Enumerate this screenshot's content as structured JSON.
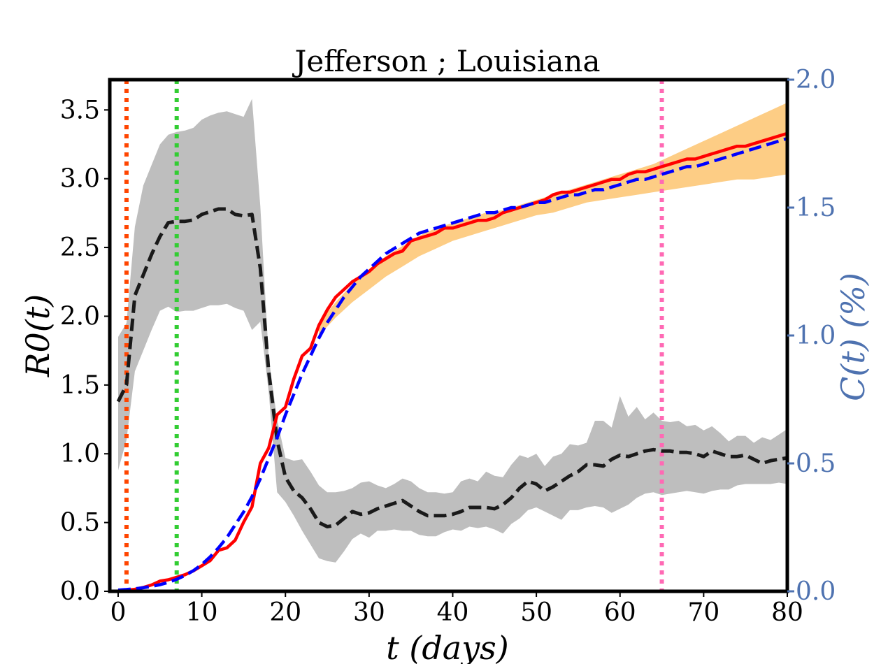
{
  "colors": {
    "r0_line": "#1a1a1a",
    "r0_band": "#bebebe",
    "c_band": "#fdcd85",
    "c_observed": "#ff0000",
    "c_model": "#0000ff",
    "right_axis": "#4e72b0",
    "vline_1": "#ff4500",
    "vline_2": "#32cd32",
    "vline_3": "#ff69b4"
  },
  "chart_data": {
    "type": "line",
    "title": "Jefferson ; Louisiana",
    "xlabel": "t (days)",
    "ylabel_left": "R0(t)",
    "ylabel_right": "C(t) (%)",
    "xlim": [
      -1,
      80
    ],
    "ylim_left": [
      0,
      3.72
    ],
    "ylim_right": [
      0,
      2.0
    ],
    "xticks": [
      "0",
      "10",
      "20",
      "30",
      "40",
      "50",
      "60",
      "70",
      "80"
    ],
    "yticks_left": [
      "0.0",
      "0.5",
      "1.0",
      "1.5",
      "2.0",
      "2.5",
      "3.0",
      "3.5"
    ],
    "yticks_right": [
      "0.0",
      "0.5",
      "1.0",
      "1.5",
      "2.0"
    ],
    "vlines": [
      {
        "x": 1,
        "color": "#ff4500",
        "style": "dotted"
      },
      {
        "x": 7,
        "color": "#32cd32",
        "style": "dotted"
      },
      {
        "x": 65,
        "color": "#ff69b4",
        "style": "dotted"
      }
    ],
    "series": [
      {
        "axis": "left",
        "style": "dashed",
        "x": [
          0,
          1,
          2,
          3,
          4,
          5,
          6,
          7,
          8,
          9,
          10,
          11,
          12,
          13,
          14,
          15,
          16,
          17,
          18,
          19,
          20,
          21,
          22,
          23,
          24,
          25,
          26,
          27,
          28,
          29,
          30,
          31,
          32,
          33,
          34,
          35,
          36,
          37,
          38,
          39,
          40,
          41,
          42,
          43,
          44,
          45,
          46,
          47,
          48,
          49,
          50,
          51,
          52,
          53,
          54,
          55,
          56,
          57,
          58,
          59,
          60,
          61,
          62,
          63,
          64,
          65,
          66,
          67,
          68,
          69,
          70,
          71,
          72,
          73,
          74,
          75,
          76,
          77,
          78,
          79,
          80
        ],
        "y": [
          1.38,
          1.5,
          2.15,
          2.3,
          2.45,
          2.58,
          2.68,
          2.69,
          2.69,
          2.7,
          2.74,
          2.76,
          2.78,
          2.78,
          2.74,
          2.73,
          2.74,
          2.35,
          1.6,
          1.1,
          0.83,
          0.73,
          0.68,
          0.6,
          0.5,
          0.47,
          0.48,
          0.53,
          0.58,
          0.56,
          0.57,
          0.6,
          0.62,
          0.64,
          0.66,
          0.62,
          0.58,
          0.55,
          0.55,
          0.55,
          0.56,
          0.58,
          0.61,
          0.61,
          0.61,
          0.6,
          0.63,
          0.68,
          0.75,
          0.8,
          0.78,
          0.73,
          0.76,
          0.8,
          0.84,
          0.87,
          0.92,
          0.92,
          0.91,
          0.96,
          0.99,
          0.98,
          1.0,
          1.02,
          1.03,
          1.02,
          1.02,
          1.01,
          1.01,
          1.0,
          0.98,
          1.02,
          1.0,
          0.98,
          0.98,
          0.99,
          0.96,
          0.93,
          0.95,
          0.96,
          0.97
        ]
      },
      {
        "axis": "left",
        "style": "band",
        "x": [
          0,
          1,
          2,
          3,
          4,
          5,
          6,
          7,
          8,
          9,
          10,
          11,
          12,
          13,
          14,
          15,
          16,
          17,
          18,
          19,
          20,
          21,
          22,
          23,
          24,
          25,
          26,
          27,
          28,
          29,
          30,
          31,
          32,
          33,
          34,
          35,
          36,
          37,
          38,
          39,
          40,
          41,
          42,
          43,
          44,
          45,
          46,
          47,
          48,
          49,
          50,
          51,
          52,
          53,
          54,
          55,
          56,
          57,
          58,
          59,
          60,
          61,
          62,
          63,
          64,
          65,
          66,
          67,
          68,
          69,
          70,
          71,
          72,
          73,
          74,
          75,
          76,
          77,
          78,
          79,
          80
        ],
        "y_low": [
          0.88,
          1.1,
          1.6,
          1.75,
          1.9,
          2.04,
          2.07,
          2.03,
          2.04,
          2.04,
          2.06,
          2.08,
          2.08,
          2.09,
          2.06,
          2.04,
          1.9,
          1.96,
          1.45,
          0.72,
          0.65,
          0.55,
          0.44,
          0.34,
          0.24,
          0.22,
          0.21,
          0.29,
          0.38,
          0.42,
          0.39,
          0.44,
          0.44,
          0.45,
          0.44,
          0.44,
          0.41,
          0.4,
          0.4,
          0.43,
          0.45,
          0.44,
          0.47,
          0.46,
          0.47,
          0.45,
          0.42,
          0.49,
          0.53,
          0.59,
          0.61,
          0.58,
          0.55,
          0.52,
          0.59,
          0.59,
          0.61,
          0.62,
          0.61,
          0.57,
          0.6,
          0.63,
          0.68,
          0.71,
          0.72,
          0.7,
          0.71,
          0.72,
          0.73,
          0.72,
          0.71,
          0.73,
          0.74,
          0.74,
          0.77,
          0.78,
          0.78,
          0.78,
          0.78,
          0.79,
          0.78
        ],
        "y_high": [
          1.85,
          1.95,
          2.65,
          2.95,
          3.1,
          3.25,
          3.32,
          3.34,
          3.35,
          3.37,
          3.43,
          3.46,
          3.48,
          3.49,
          3.47,
          3.45,
          3.58,
          2.8,
          1.7,
          1.25,
          0.97,
          0.95,
          0.96,
          0.87,
          0.77,
          0.72,
          0.72,
          0.73,
          0.75,
          0.79,
          0.8,
          0.77,
          0.75,
          0.78,
          0.82,
          0.8,
          0.75,
          0.72,
          0.72,
          0.71,
          0.72,
          0.8,
          0.82,
          0.8,
          0.87,
          0.84,
          0.83,
          0.92,
          0.99,
          0.97,
          1.0,
          0.91,
          0.98,
          1.0,
          1.07,
          1.06,
          1.08,
          1.24,
          1.24,
          1.19,
          1.42,
          1.27,
          1.34,
          1.25,
          1.3,
          1.24,
          1.23,
          1.24,
          1.2,
          1.21,
          1.17,
          1.2,
          1.15,
          1.09,
          1.13,
          1.13,
          1.08,
          1.12,
          1.1,
          1.14,
          1.18
        ]
      },
      {
        "axis": "right",
        "style": "solid",
        "x": [
          0,
          1,
          2,
          3,
          4,
          5,
          6,
          7,
          8,
          9,
          10,
          11,
          12,
          13,
          14,
          15,
          16,
          17,
          18,
          19,
          20,
          21,
          22,
          23,
          24,
          25,
          26,
          27,
          28,
          29,
          30,
          31,
          32,
          33,
          34,
          35,
          36,
          37,
          38,
          39,
          40,
          41,
          42,
          43,
          44,
          45,
          46,
          47,
          48,
          49,
          50,
          51,
          52,
          53,
          54,
          55,
          56,
          57,
          58,
          59,
          60,
          61,
          62,
          63,
          64,
          65,
          66,
          67,
          68,
          69,
          70,
          71,
          72,
          73,
          74,
          75,
          76,
          77,
          78,
          79,
          80
        ],
        "y": [
          0.002,
          0.004,
          0.008,
          0.015,
          0.025,
          0.04,
          0.045,
          0.055,
          0.065,
          0.08,
          0.1,
          0.12,
          0.16,
          0.17,
          0.2,
          0.27,
          0.33,
          0.5,
          0.56,
          0.69,
          0.72,
          0.83,
          0.92,
          0.95,
          1.04,
          1.1,
          1.15,
          1.18,
          1.21,
          1.23,
          1.25,
          1.28,
          1.3,
          1.32,
          1.33,
          1.37,
          1.38,
          1.39,
          1.4,
          1.42,
          1.42,
          1.43,
          1.44,
          1.45,
          1.45,
          1.46,
          1.48,
          1.49,
          1.5,
          1.51,
          1.52,
          1.53,
          1.55,
          1.56,
          1.56,
          1.57,
          1.58,
          1.59,
          1.6,
          1.61,
          1.61,
          1.63,
          1.64,
          1.64,
          1.65,
          1.66,
          1.67,
          1.68,
          1.69,
          1.69,
          1.7,
          1.71,
          1.72,
          1.73,
          1.74,
          1.74,
          1.75,
          1.76,
          1.77,
          1.78,
          1.79
        ]
      },
      {
        "axis": "right",
        "style": "dashed",
        "x": [
          0,
          1,
          2,
          3,
          4,
          5,
          6,
          7,
          8,
          9,
          10,
          11,
          12,
          13,
          14,
          15,
          16,
          17,
          18,
          19,
          20,
          21,
          22,
          23,
          24,
          25,
          26,
          27,
          28,
          29,
          30,
          31,
          32,
          33,
          34,
          35,
          36,
          37,
          38,
          39,
          40,
          41,
          42,
          43,
          44,
          45,
          46,
          47,
          48,
          49,
          50,
          51,
          52,
          53,
          54,
          55,
          56,
          57,
          58,
          59,
          60,
          61,
          62,
          63,
          64,
          65,
          66,
          67,
          68,
          69,
          70,
          71,
          72,
          73,
          74,
          75,
          76,
          77,
          78,
          79,
          80
        ],
        "y": [
          0.005,
          0.007,
          0.01,
          0.014,
          0.019,
          0.026,
          0.035,
          0.047,
          0.062,
          0.081,
          0.105,
          0.135,
          0.17,
          0.21,
          0.26,
          0.31,
          0.37,
          0.44,
          0.52,
          0.6,
          0.69,
          0.77,
          0.85,
          0.92,
          0.99,
          1.05,
          1.1,
          1.15,
          1.19,
          1.23,
          1.26,
          1.29,
          1.32,
          1.34,
          1.36,
          1.38,
          1.4,
          1.41,
          1.42,
          1.43,
          1.44,
          1.45,
          1.46,
          1.47,
          1.48,
          1.48,
          1.49,
          1.5,
          1.5,
          1.51,
          1.52,
          1.52,
          1.53,
          1.54,
          1.55,
          1.55,
          1.56,
          1.57,
          1.57,
          1.58,
          1.59,
          1.6,
          1.61,
          1.61,
          1.62,
          1.63,
          1.64,
          1.65,
          1.66,
          1.66,
          1.67,
          1.68,
          1.69,
          1.7,
          1.71,
          1.72,
          1.73,
          1.74,
          1.75,
          1.76,
          1.77
        ]
      },
      {
        "axis": "right",
        "style": "band",
        "x": [
          24,
          26,
          28,
          30,
          32,
          34,
          36,
          38,
          40,
          42,
          44,
          46,
          48,
          50,
          52,
          54,
          56,
          58,
          60,
          62,
          64,
          66,
          68,
          70,
          72,
          74,
          76,
          78,
          80
        ],
        "y_low": [
          1.0,
          1.07,
          1.13,
          1.18,
          1.23,
          1.27,
          1.31,
          1.34,
          1.37,
          1.39,
          1.41,
          1.43,
          1.45,
          1.47,
          1.48,
          1.5,
          1.52,
          1.53,
          1.54,
          1.55,
          1.56,
          1.57,
          1.58,
          1.59,
          1.6,
          1.61,
          1.61,
          1.62,
          1.63
        ],
        "y_high": [
          1.05,
          1.13,
          1.2,
          1.26,
          1.31,
          1.35,
          1.39,
          1.42,
          1.44,
          1.46,
          1.48,
          1.49,
          1.51,
          1.53,
          1.55,
          1.57,
          1.59,
          1.61,
          1.63,
          1.65,
          1.67,
          1.7,
          1.73,
          1.76,
          1.79,
          1.82,
          1.85,
          1.88,
          1.91
        ]
      }
    ]
  }
}
